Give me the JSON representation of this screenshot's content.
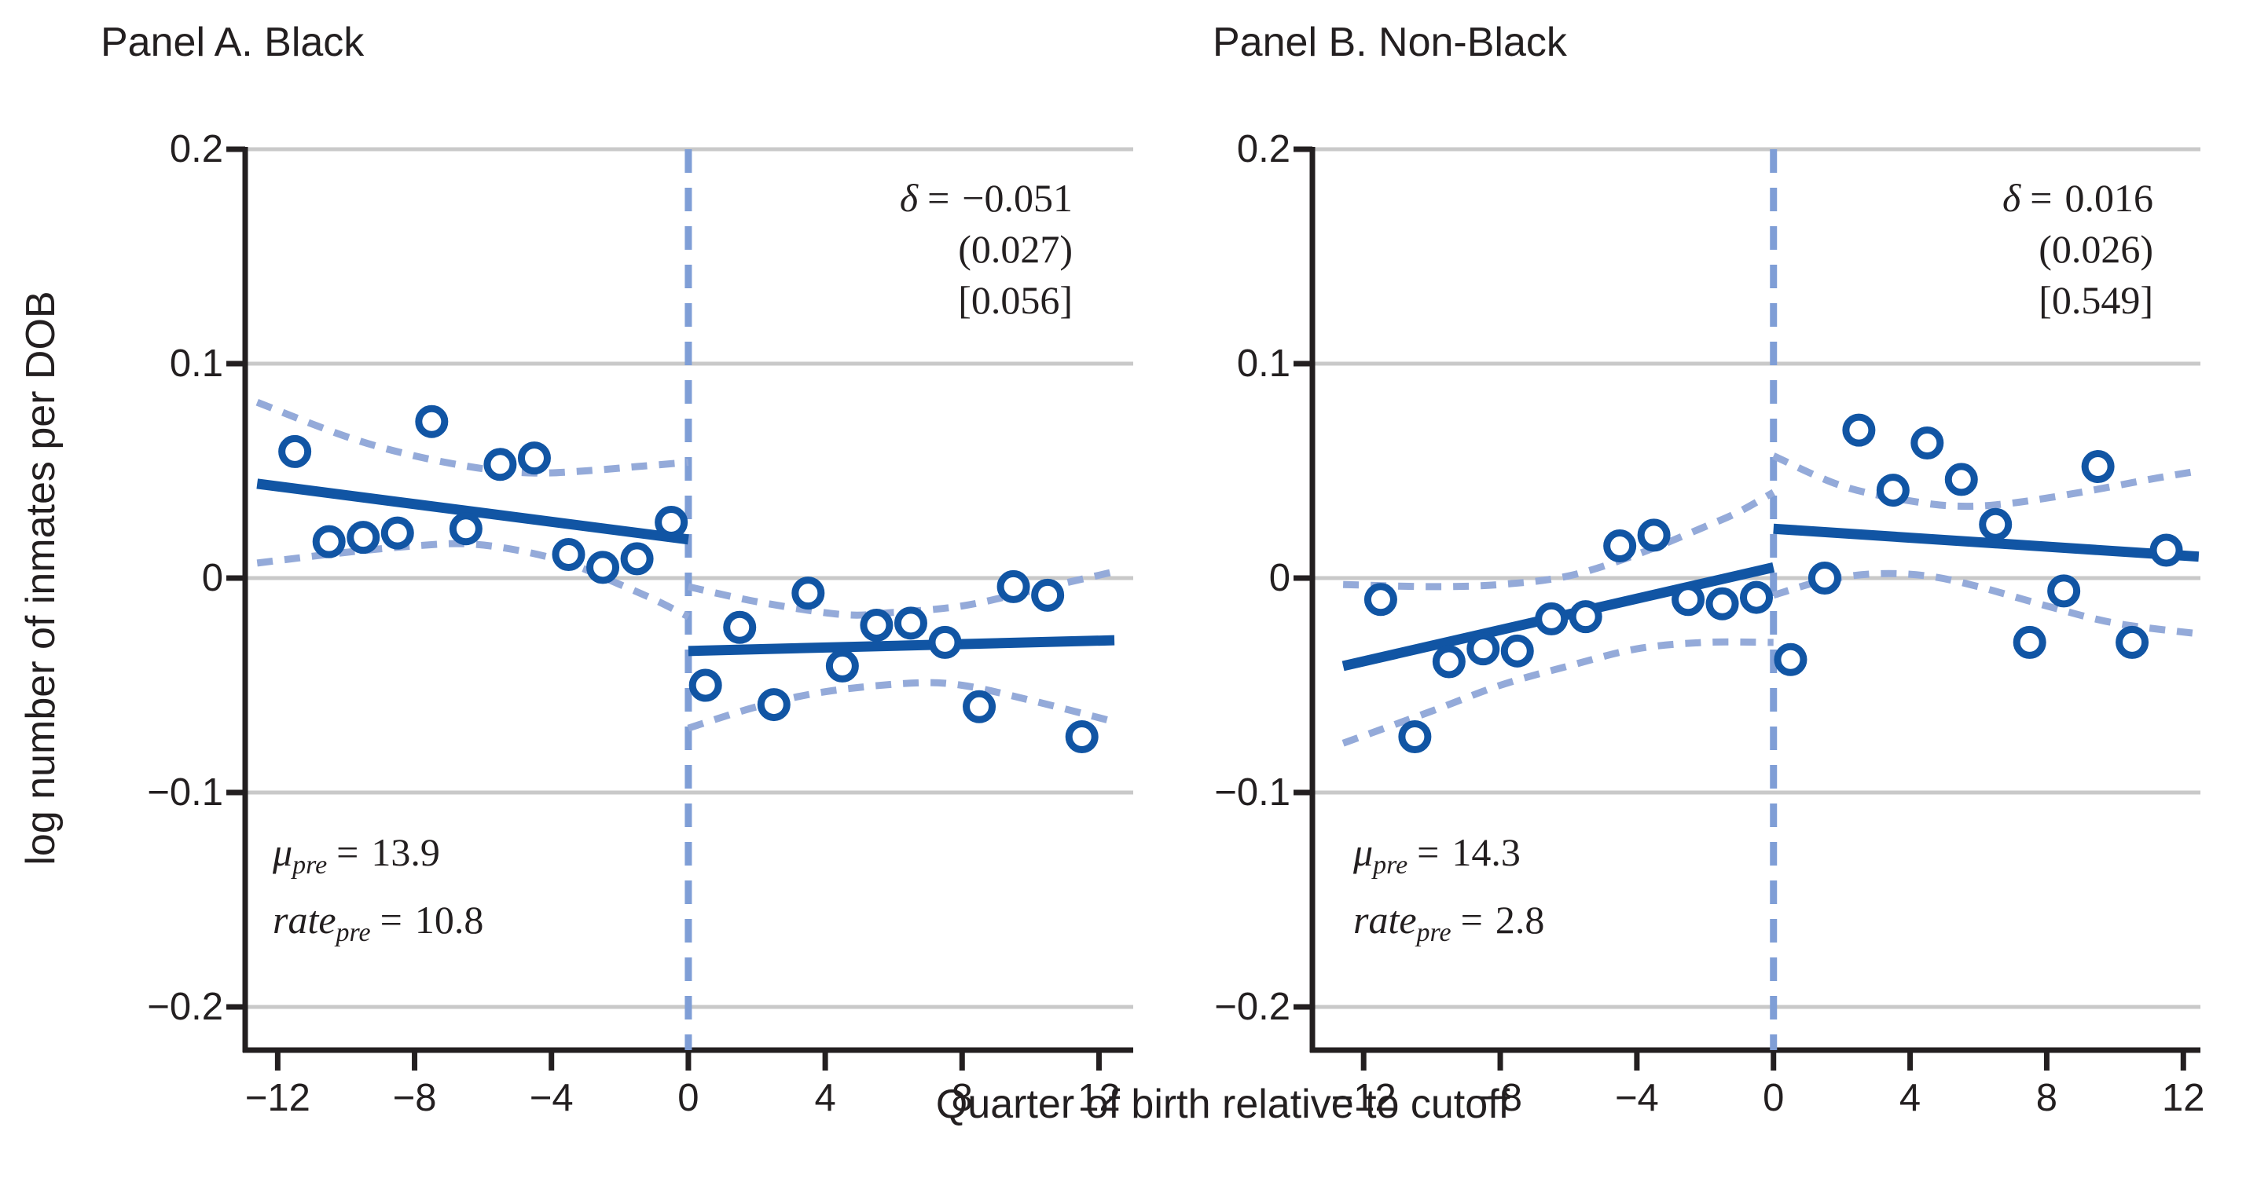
{
  "style": {
    "line_color": "#1155a4",
    "band_color": "#94aad9",
    "cutoff_color": "#7f9ed6",
    "grid_color": "#c9c9c9",
    "axis_color": "#231f20",
    "text_color": "#231f20",
    "marker_fill": "#ffffff"
  },
  "figure": {
    "x_axis_label": "Quarter of birth relative to cutoff",
    "y_axis_label": "log number of inmates per DOB"
  },
  "chart_data": [
    {
      "type": "scatter",
      "panel": "A",
      "title": "Panel A. Black",
      "xlabel": "Quarter of birth relative to cutoff",
      "ylabel": "log number of inmates per DOB",
      "xlim": [
        -13,
        13
      ],
      "ylim": [
        -0.2,
        0.2
      ],
      "x_ticks": [
        -12,
        -8,
        -4,
        0,
        4,
        8,
        12
      ],
      "x_tick_labels": [
        "−12",
        "−8",
        "−4",
        "0",
        "4",
        "8",
        "12"
      ],
      "y_ticks": [
        0.2,
        0.1,
        0,
        -0.1,
        -0.2
      ],
      "y_tick_labels": [
        "0.2",
        "0.1",
        "0",
        "−0.1",
        "−0.2"
      ],
      "cutoff_x": 0,
      "grid": "horizontal",
      "annotations": {
        "delta_sym": "δ",
        "delta_eq": "=",
        "delta_val": "−0.051",
        "se": "(0.027)",
        "pval": "[0.056]",
        "mu_sym": "μ",
        "mu_sub": "pre",
        "mu_eq": "=",
        "mu_val": "13.9",
        "rate_sym": "rate",
        "rate_sub": "pre",
        "rate_eq": "=",
        "rate_val": "10.8"
      },
      "points_pre": [
        [
          -11.5,
          0.059
        ],
        [
          -10.5,
          0.017
        ],
        [
          -9.5,
          0.019
        ],
        [
          -8.5,
          0.021
        ],
        [
          -7.5,
          0.073
        ],
        [
          -6.5,
          0.023
        ],
        [
          -5.5,
          0.053
        ],
        [
          -4.5,
          0.056
        ],
        [
          -3.5,
          0.011
        ],
        [
          -2.5,
          0.005
        ],
        [
          -1.5,
          0.009
        ],
        [
          -0.5,
          0.026
        ]
      ],
      "points_post": [
        [
          0.5,
          -0.05
        ],
        [
          1.5,
          -0.023
        ],
        [
          2.5,
          -0.059
        ],
        [
          3.5,
          -0.007
        ],
        [
          4.5,
          -0.041
        ],
        [
          5.5,
          -0.022
        ],
        [
          6.5,
          -0.021
        ],
        [
          7.5,
          -0.03
        ],
        [
          8.5,
          -0.06
        ],
        [
          9.5,
          -0.004
        ],
        [
          10.5,
          -0.008
        ],
        [
          11.5,
          -0.074
        ]
      ],
      "fit_pre": [
        [
          -12.6,
          0.044
        ],
        [
          0,
          0.018
        ]
      ],
      "fit_post": [
        [
          0,
          -0.034
        ],
        [
          12.45,
          -0.029
        ]
      ],
      "ci_pre_upper": [
        [
          -12.6,
          0.082
        ],
        [
          -10,
          0.066
        ],
        [
          -8,
          0.057
        ],
        [
          -6,
          0.051
        ],
        [
          -4.5,
          0.049
        ],
        [
          -3,
          0.05
        ],
        [
          -1.5,
          0.052
        ],
        [
          0,
          0.054
        ]
      ],
      "ci_pre_lower": [
        [
          -12.6,
          0.007
        ],
        [
          -10,
          0.012
        ],
        [
          -8,
          0.015
        ],
        [
          -6.5,
          0.016
        ],
        [
          -5,
          0.013
        ],
        [
          -3.5,
          0.007
        ],
        [
          -2,
          -0.003
        ],
        [
          -1,
          -0.01
        ],
        [
          0,
          -0.018
        ]
      ],
      "ci_post_upper": [
        [
          0,
          -0.004
        ],
        [
          2,
          -0.011
        ],
        [
          4.5,
          -0.017
        ],
        [
          6,
          -0.016
        ],
        [
          8,
          -0.013
        ],
        [
          10,
          -0.006
        ],
        [
          12.45,
          0.003
        ]
      ],
      "ci_post_lower": [
        [
          0,
          -0.07
        ],
        [
          2,
          -0.06
        ],
        [
          4,
          -0.053
        ],
        [
          6.5,
          -0.049
        ],
        [
          8,
          -0.05
        ],
        [
          10,
          -0.057
        ],
        [
          12.45,
          -0.067
        ]
      ]
    },
    {
      "type": "scatter",
      "panel": "B",
      "title": "Panel B. Non-Black",
      "xlabel": "Quarter of birth relative to cutoff",
      "ylabel": "log number of inmates per DOB",
      "xlim": [
        -13,
        13
      ],
      "ylim": [
        -0.2,
        0.2
      ],
      "x_ticks": [
        -12,
        -8,
        -4,
        0,
        4,
        8,
        12
      ],
      "x_tick_labels": [
        "−12",
        "−8",
        "−4",
        "0",
        "4",
        "8",
        "12"
      ],
      "y_ticks": [
        0.2,
        0.1,
        0,
        -0.1,
        -0.2
      ],
      "y_tick_labels": [
        "0.2",
        "0.1",
        "0",
        "−0.1",
        "−0.2"
      ],
      "cutoff_x": 0,
      "grid": "horizontal",
      "annotations": {
        "delta_sym": "δ",
        "delta_eq": "=",
        "delta_val": "0.016",
        "se": "(0.026)",
        "pval": "[0.549]",
        "mu_sym": "μ",
        "mu_sub": "pre",
        "mu_eq": "=",
        "mu_val": "14.3",
        "rate_sym": "rate",
        "rate_sub": "pre",
        "rate_eq": "=",
        "rate_val": "2.8"
      },
      "points_pre": [
        [
          -11.5,
          -0.01
        ],
        [
          -10.5,
          -0.074
        ],
        [
          -9.5,
          -0.039
        ],
        [
          -8.5,
          -0.033
        ],
        [
          -7.5,
          -0.034
        ],
        [
          -6.5,
          -0.019
        ],
        [
          -5.5,
          -0.018
        ],
        [
          -4.5,
          0.015
        ],
        [
          -3.5,
          0.02
        ],
        [
          -2.5,
          -0.01
        ],
        [
          -1.5,
          -0.012
        ],
        [
          -0.5,
          -0.009
        ]
      ],
      "points_post": [
        [
          0.5,
          -0.038
        ],
        [
          1.5,
          0.0
        ],
        [
          2.5,
          0.069
        ],
        [
          3.5,
          0.041
        ],
        [
          4.5,
          0.063
        ],
        [
          5.5,
          0.046
        ],
        [
          6.5,
          0.025
        ],
        [
          7.5,
          -0.03
        ],
        [
          8.5,
          -0.006
        ],
        [
          9.5,
          0.052
        ],
        [
          10.5,
          -0.03
        ],
        [
          11.5,
          0.013
        ]
      ],
      "fit_pre": [
        [
          -12.6,
          -0.041
        ],
        [
          0,
          0.005
        ]
      ],
      "fit_post": [
        [
          0,
          0.023
        ],
        [
          12.45,
          0.01
        ]
      ],
      "ci_pre_upper": [
        [
          -12.6,
          -0.003
        ],
        [
          -10,
          -0.004
        ],
        [
          -8,
          -0.003
        ],
        [
          -6,
          0.001
        ],
        [
          -4,
          0.011
        ],
        [
          -2,
          0.024
        ],
        [
          -1,
          0.031
        ],
        [
          0,
          0.04
        ]
      ],
      "ci_pre_lower": [
        [
          -12.6,
          -0.077
        ],
        [
          -10,
          -0.062
        ],
        [
          -8,
          -0.05
        ],
        [
          -6,
          -0.041
        ],
        [
          -4,
          -0.033
        ],
        [
          -2,
          -0.03
        ],
        [
          0,
          -0.03
        ]
      ],
      "ci_post_upper": [
        [
          0,
          0.057
        ],
        [
          2,
          0.043
        ],
        [
          4,
          0.036
        ],
        [
          5.5,
          0.0335
        ],
        [
          7,
          0.035
        ],
        [
          9,
          0.04
        ],
        [
          11,
          0.046
        ],
        [
          12.45,
          0.05
        ]
      ],
      "ci_post_lower": [
        [
          0,
          -0.008
        ],
        [
          1.5,
          -0.001
        ],
        [
          3,
          0.002
        ],
        [
          4.5,
          0.001
        ],
        [
          6,
          -0.004
        ],
        [
          8,
          -0.013
        ],
        [
          10,
          -0.021
        ],
        [
          12.45,
          -0.026
        ]
      ]
    }
  ]
}
